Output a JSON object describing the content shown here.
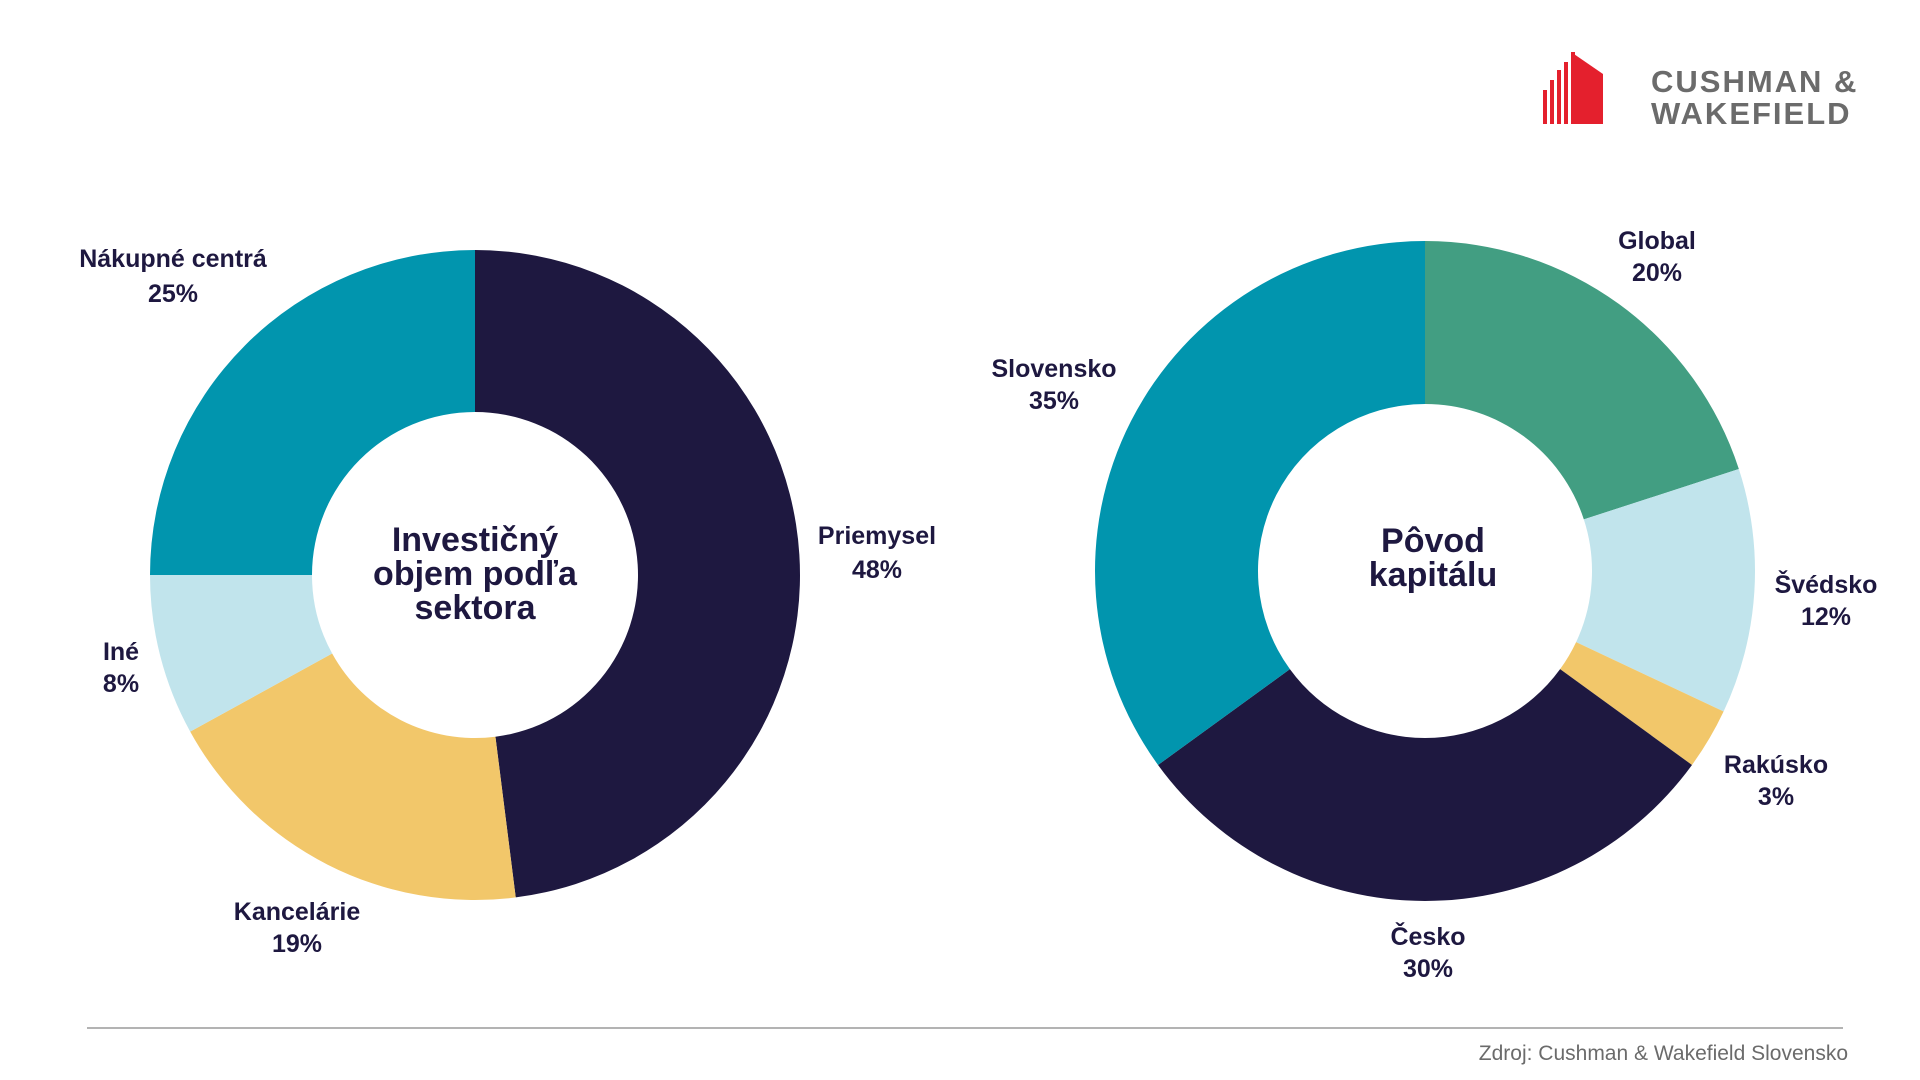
{
  "logo": {
    "line1": "CUSHMAN &",
    "line2": "WAKEFIELD",
    "mark_color": "#e4202d",
    "text_color": "#6b6b6b"
  },
  "source": "Zdroj: Cushman & Wakefield Slovensko",
  "chart_data": [
    {
      "type": "pie",
      "variant": "donut",
      "center_title_lines": [
        "Investičný",
        "objem podľa",
        "sektora"
      ],
      "start": "12 o'clock, clockwise",
      "slices": [
        {
          "name": "Priemysel",
          "value": 48,
          "label": "48%",
          "color": "#1e1840"
        },
        {
          "name": "Kancelárie",
          "value": 19,
          "label": "19%",
          "color": "#f2c76a"
        },
        {
          "name": "Iné",
          "value": 8,
          "label": "8%",
          "color": "#c1e4ec"
        },
        {
          "name": "Nákupné centrá",
          "value": 25,
          "label": "25%",
          "color": "#0195ae"
        }
      ]
    },
    {
      "type": "pie",
      "variant": "donut",
      "center_title_lines": [
        "Pôvod",
        "kapitálu"
      ],
      "start": "12 o'clock, clockwise",
      "slices": [
        {
          "name": "Global",
          "value": 20,
          "label": "20%",
          "color": "#429e82"
        },
        {
          "name": "Švédsko",
          "value": 12,
          "label": "12%",
          "color": "#c1e4ec"
        },
        {
          "name": "Rakúsko",
          "value": 3,
          "label": "3%",
          "color": "#f2c76a"
        },
        {
          "name": "Česko",
          "value": 30,
          "label": "30%",
          "color": "#1e1840"
        },
        {
          "name": "Slovensko",
          "value": 35,
          "label": "35%",
          "color": "#0195ae"
        }
      ]
    }
  ]
}
